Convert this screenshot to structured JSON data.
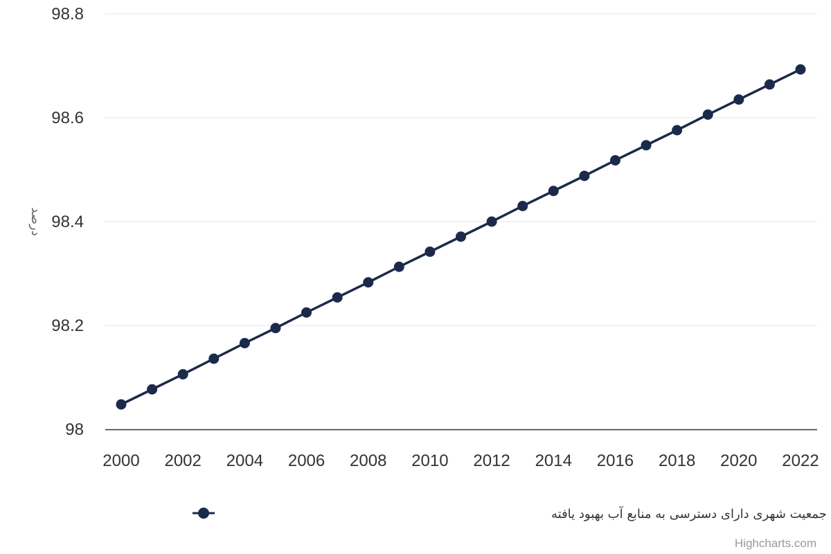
{
  "chart_data": {
    "type": "line",
    "x": [
      2000,
      2001,
      2002,
      2003,
      2004,
      2005,
      2006,
      2007,
      2008,
      2009,
      2010,
      2011,
      2012,
      2013,
      2014,
      2015,
      2016,
      2017,
      2018,
      2019,
      2020,
      2021,
      2022
    ],
    "series": [
      {
        "name": "سهم جمعیت شهری دارای دسترسی به منابع آب بهبود یافته",
        "values": [
          98.048,
          98.077,
          98.106,
          98.136,
          98.166,
          98.195,
          98.225,
          98.254,
          98.283,
          98.313,
          98.342,
          98.371,
          98.4,
          98.43,
          98.459,
          98.488,
          98.518,
          98.547,
          98.576,
          98.606,
          98.635,
          98.664,
          98.693
        ],
        "color": "#1b2a4a"
      }
    ],
    "xticks": [
      "2000",
      "2002",
      "2004",
      "2006",
      "2008",
      "2010",
      "2012",
      "2014",
      "2016",
      "2018",
      "2020",
      "2022"
    ],
    "yticks": [
      "98",
      "98.2",
      "98.4",
      "98.6",
      "98.8"
    ],
    "ylim": [
      98,
      98.8
    ],
    "xlim": [
      2000,
      2022
    ],
    "ylabel": "درصد",
    "xlabel": "",
    "title": "",
    "grid": true,
    "legend_position": "bottom-center"
  },
  "credits": "Highcharts.com"
}
